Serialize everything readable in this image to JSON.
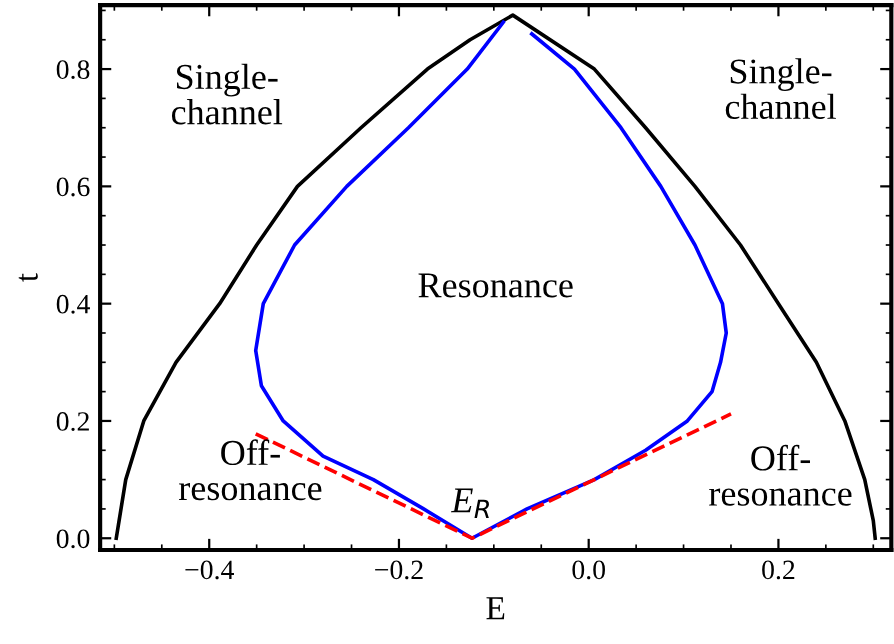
{
  "chart_data": {
    "type": "line",
    "xlabel": "E",
    "ylabel": "t",
    "xlim": [
      -0.515,
      0.319
    ],
    "ylim": [
      -0.02,
      0.909
    ],
    "xticks": [
      {
        "value": -0.4,
        "label": "−0.4"
      },
      {
        "value": -0.2,
        "label": "−0.2"
      },
      {
        "value": 0.0,
        "label": "0.0"
      },
      {
        "value": 0.2,
        "label": "0.2"
      }
    ],
    "yticks": [
      {
        "value": 0.0,
        "label": "0.0"
      },
      {
        "value": 0.2,
        "label": "0.2"
      },
      {
        "value": 0.4,
        "label": "0.4"
      },
      {
        "value": 0.6,
        "label": "0.6"
      },
      {
        "value": 0.8,
        "label": "0.8"
      }
    ],
    "grid": false,
    "legend": false,
    "series": [
      {
        "color": "#000000",
        "line_style": "solid",
        "x": [
          -0.498,
          -0.495,
          -0.488,
          -0.469,
          -0.435,
          -0.389,
          -0.35,
          -0.307,
          -0.24,
          -0.17,
          -0.125,
          -0.08,
          0.006,
          0.06,
          0.112,
          0.16,
          0.2,
          0.24,
          0.27,
          0.291,
          0.3,
          0.302
        ],
        "values": [
          0.0,
          0.03,
          0.1,
          0.2,
          0.3,
          0.4,
          0.5,
          0.6,
          0.7,
          0.8,
          0.85,
          0.892,
          0.8,
          0.7,
          0.6,
          0.5,
          0.4,
          0.3,
          0.2,
          0.1,
          0.03,
          0.0
        ]
      },
      {
        "color": "#0000ff",
        "line_style": "solid",
        "x": [
          -0.09,
          -0.128,
          -0.19,
          -0.255,
          -0.31,
          -0.343,
          -0.351,
          -0.345,
          -0.322,
          -0.28,
          -0.227,
          -0.174,
          -0.123,
          -0.065,
          0.006,
          0.06,
          0.104,
          0.13,
          0.139,
          0.145,
          0.141,
          0.112,
          0.076,
          0.034,
          -0.015,
          -0.06
        ],
        "values": [
          0.88,
          0.8,
          0.7,
          0.6,
          0.5,
          0.4,
          0.32,
          0.26,
          0.2,
          0.14,
          0.1,
          0.05,
          0.0,
          0.05,
          0.1,
          0.15,
          0.2,
          0.25,
          0.3,
          0.35,
          0.4,
          0.5,
          0.6,
          0.7,
          0.8,
          0.86
        ]
      },
      {
        "color": "#ff0000",
        "line_style": "dashed",
        "x": [
          -0.351,
          -0.123,
          0.15
        ],
        "values": [
          0.178,
          0.0,
          0.212
        ]
      }
    ],
    "annotations": [
      "Single-\nchannel",
      "Single-\nchannel",
      "Resonance",
      "Off-\nresonance",
      "Off-\nresonance",
      "E$_{R}$"
    ]
  }
}
